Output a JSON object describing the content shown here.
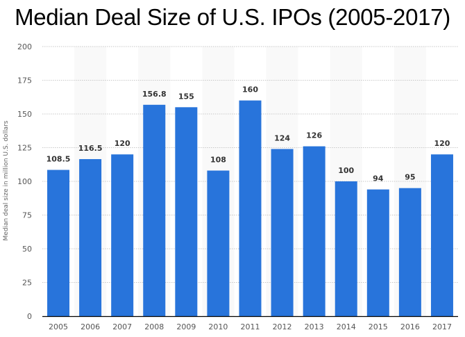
{
  "chart_data": {
    "type": "bar",
    "title": "Median Deal Size of U.S. IPOs (2005-2017)",
    "xlabel": "",
    "ylabel": "Median deal size in million U.S. dollars",
    "ylim": [
      0,
      200
    ],
    "yticks": [
      0,
      25,
      50,
      75,
      100,
      125,
      150,
      175,
      200
    ],
    "grid": true,
    "categories": [
      "2005",
      "2006",
      "2007",
      "2008",
      "2009",
      "2010",
      "2011",
      "2012",
      "2013",
      "2014",
      "2015",
      "2016",
      "2017"
    ],
    "values": [
      108.5,
      116.5,
      120,
      156.8,
      155,
      108,
      160,
      124,
      126,
      100,
      94,
      95,
      120
    ],
    "data_labels": [
      "108.5",
      "116.5",
      "120",
      "156.8",
      "155",
      "108",
      "160",
      "124",
      "126",
      "100",
      "94",
      "95",
      "120"
    ],
    "bar_color": "#2874db",
    "band_color": "#f9f9f9"
  }
}
